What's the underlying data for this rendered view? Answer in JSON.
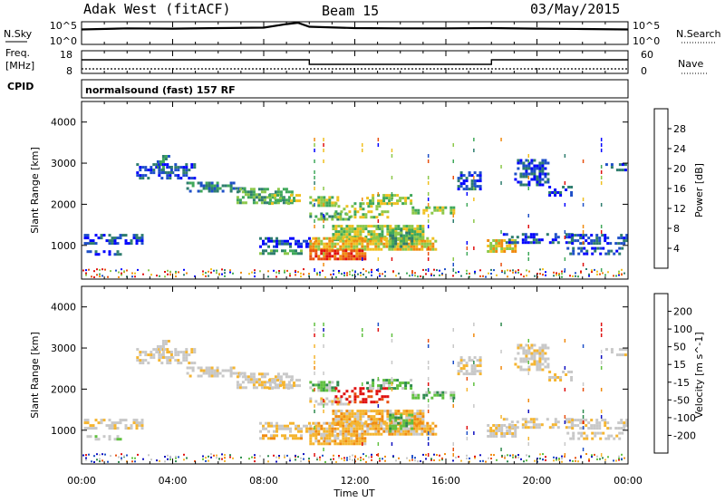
{
  "header": {
    "station": "Adak West (fitACF)",
    "beam": "Beam 15",
    "date": "03/May/2015"
  },
  "noise_panel": {
    "left_label": "N.Sky",
    "right_label": "N.Search",
    "left_ticks": [
      "10^5",
      "10^0"
    ],
    "right_ticks": [
      "10^5",
      "10^0"
    ]
  },
  "freq_panel": {
    "left_label_line1": "Freq.",
    "left_label_line2": "[MHz]",
    "right_label": "Nave",
    "left_ticks": [
      "18",
      "8"
    ],
    "right_ticks": [
      "60",
      "0"
    ]
  },
  "cpid": {
    "label": "CPID",
    "program": "normalsound (fast) 157 RF"
  },
  "x_axis": {
    "label": "Time UT",
    "ticks": [
      "00:00",
      "04:00",
      "08:00",
      "12:00",
      "16:00",
      "20:00",
      "00:00"
    ]
  },
  "colors": {
    "power": [
      "#0000ff",
      "#1e4fc8",
      "#2e7d6e",
      "#3fa85a",
      "#8cc84a",
      "#f0c020",
      "#f08a10",
      "#e85010",
      "#e01010"
    ],
    "velocity": [
      "#e01010",
      "#e85010",
      "#f08a10",
      "#f5b530",
      "#c8c8c8",
      "#c8c8c8",
      "#60c040",
      "#2e8a4e",
      "#1e4fc8",
      "#1010c0"
    ]
  },
  "chart_data": [
    {
      "type": "line",
      "title": "",
      "xlabel": "",
      "ylabel": "N.Sky",
      "y_scale": "log",
      "xlim": [
        0,
        24
      ],
      "ylim": [
        1,
        100000
      ],
      "series": [
        {
          "x": [
            0,
            2,
            4,
            6,
            8,
            9,
            9.5,
            10,
            12,
            14,
            16,
            18,
            20,
            22,
            24
          ],
          "values": [
            2000,
            3500,
            3000,
            4000,
            5000,
            30000,
            60000,
            8000,
            4000,
            3500,
            3500,
            4000,
            3000,
            2500,
            2000
          ]
        }
      ]
    },
    {
      "type": "line",
      "title": "",
      "xlabel": "",
      "ylabel": "Freq. [MHz]",
      "xlim": [
        0,
        24
      ],
      "ylim": [
        8,
        18
      ],
      "series": [
        {
          "name": "Freq. [MHz]",
          "x": [
            0,
            10,
            10,
            18,
            18,
            24
          ],
          "values": [
            14,
            14,
            12,
            12,
            14,
            14
          ]
        },
        {
          "name": "Nave",
          "x": [
            0,
            24
          ],
          "values": [
            10,
            10
          ]
        }
      ]
    },
    {
      "type": "heatmap",
      "title": "",
      "xlabel": "",
      "ylabel": "Slant Range [km]",
      "colorbar_label": "Power [dB]",
      "colorbar_ticks": [
        4,
        8,
        12,
        16,
        20,
        24,
        28
      ],
      "xlim": [
        0,
        24
      ],
      "ylim": [
        180,
        4500
      ],
      "yticks": [
        1000,
        2000,
        3000,
        4000
      ]
    },
    {
      "type": "heatmap",
      "title": "",
      "xlabel": "Time UT",
      "ylabel": "Slant Range [km]",
      "colorbar_label": "Velocity [m s^-1]",
      "colorbar_ticks": [
        200,
        100,
        50,
        15,
        -15,
        -50,
        -100,
        -200
      ],
      "xlim": [
        0,
        24
      ],
      "ylim": [
        180,
        4500
      ],
      "yticks": [
        1000,
        2000,
        3000,
        4000
      ]
    }
  ]
}
